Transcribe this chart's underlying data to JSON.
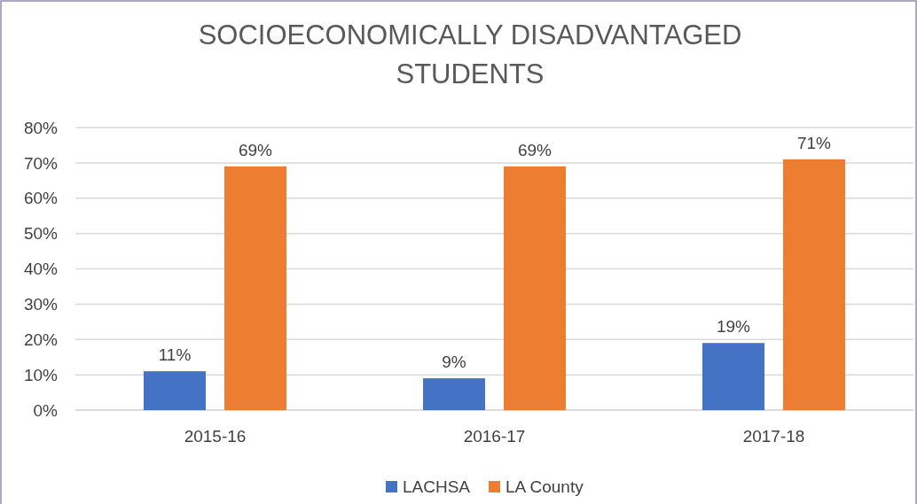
{
  "chart_data": {
    "type": "bar",
    "title": "SOCIOECONOMICALLY DISADVANTAGED\nSTUDENTS",
    "categories": [
      "2015-16",
      "2016-17",
      "2017-18"
    ],
    "series": [
      {
        "name": "LACHSA",
        "color": "#4472c4",
        "values": [
          11,
          9,
          19
        ],
        "value_labels": [
          "11%",
          "9%",
          "19%"
        ]
      },
      {
        "name": "LA County",
        "color": "#ed7d31",
        "values": [
          69,
          69,
          71
        ],
        "value_labels": [
          "69%",
          "69%",
          "71%"
        ]
      }
    ],
    "ylim": [
      0,
      80
    ],
    "yticks": [
      {
        "value": 0,
        "label": "0%"
      },
      {
        "value": 10,
        "label": "10%"
      },
      {
        "value": 20,
        "label": "20%"
      },
      {
        "value": 30,
        "label": "30%"
      },
      {
        "value": 40,
        "label": "40%"
      },
      {
        "value": 50,
        "label": "50%"
      },
      {
        "value": 60,
        "label": "60%"
      },
      {
        "value": 70,
        "label": "70%"
      },
      {
        "value": 80,
        "label": "80%"
      }
    ],
    "grid": "y",
    "legend": "bottom"
  }
}
